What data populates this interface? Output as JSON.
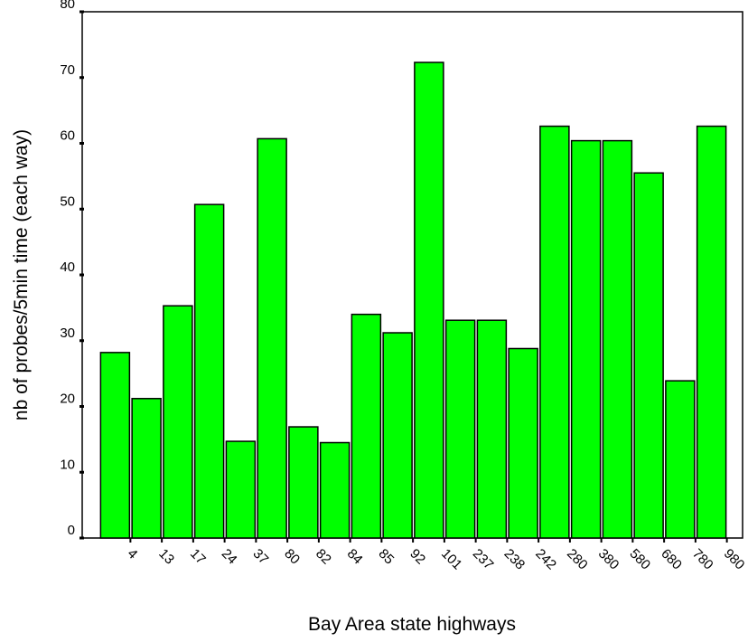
{
  "chart_data": {
    "type": "bar",
    "x_label": "Bay Area state highways",
    "y_label": "nb of probes/5min time (each way)",
    "categories": [
      "4",
      "13",
      "17",
      "24",
      "37",
      "80",
      "82",
      "84",
      "85",
      "92",
      "101",
      "237",
      "238",
      "242",
      "280",
      "380",
      "580",
      "680",
      "780",
      "980"
    ],
    "values": [
      28.2,
      21.2,
      35.3,
      50.7,
      14.7,
      60.7,
      16.9,
      14.5,
      34,
      31.2,
      72.3,
      33.1,
      33.1,
      28.8,
      62.6,
      60.4,
      60.4,
      55.5,
      23.9,
      62.6
    ],
    "color": "#00ff00",
    "ylim": [
      0,
      80
    ],
    "yticks": [
      0,
      10,
      20,
      30,
      40,
      50,
      60,
      70,
      80
    ]
  }
}
